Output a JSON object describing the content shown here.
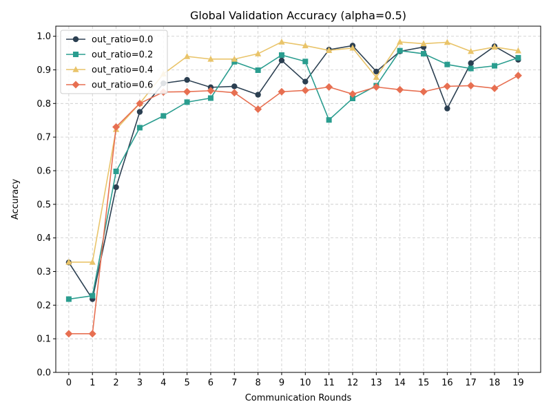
{
  "chart_data": {
    "type": "line",
    "title": "Global Validation Accuracy (alpha=0.5)",
    "xlabel": "Communication Rounds",
    "ylabel": "Accuracy",
    "x": [
      0,
      1,
      2,
      3,
      4,
      5,
      6,
      7,
      8,
      9,
      10,
      11,
      12,
      13,
      14,
      15,
      16,
      17,
      18,
      19
    ],
    "xlim": [
      -0.55,
      19.95
    ],
    "ylim": [
      0.0,
      1.03
    ],
    "yticks": [
      "0.0",
      "0.1",
      "0.2",
      "0.3",
      "0.4",
      "0.5",
      "0.6",
      "0.7",
      "0.8",
      "0.9",
      "1.0"
    ],
    "grid": true,
    "legend_position": "top-left",
    "series": [
      {
        "name": "out_ratio=0.0",
        "color": "#2b3f51",
        "marker": "circle",
        "values": [
          0.327,
          0.218,
          0.551,
          0.775,
          0.86,
          0.87,
          0.848,
          0.851,
          0.826,
          0.928,
          0.865,
          0.96,
          0.972,
          0.895,
          0.955,
          0.968,
          0.785,
          0.92,
          0.97,
          0.93
        ]
      },
      {
        "name": "out_ratio=0.2",
        "color": "#2a9d8f",
        "marker": "square",
        "values": [
          0.218,
          0.228,
          0.598,
          0.728,
          0.763,
          0.804,
          0.816,
          0.924,
          0.899,
          0.944,
          0.925,
          0.751,
          0.815,
          0.853,
          0.957,
          0.948,
          0.916,
          0.904,
          0.912,
          0.936
        ]
      },
      {
        "name": "out_ratio=0.4",
        "color": "#e9c46a",
        "marker": "triangle",
        "values": [
          0.328,
          0.328,
          0.723,
          0.8,
          0.888,
          0.94,
          0.932,
          0.932,
          0.948,
          0.983,
          0.972,
          0.958,
          0.965,
          0.878,
          0.983,
          0.978,
          0.982,
          0.955,
          0.968,
          0.957
        ]
      },
      {
        "name": "out_ratio=0.6",
        "color": "#e76f51",
        "marker": "diamond",
        "values": [
          0.115,
          0.115,
          0.73,
          0.8,
          0.834,
          0.835,
          0.838,
          0.832,
          0.783,
          0.835,
          0.839,
          0.849,
          0.828,
          0.849,
          0.841,
          0.835,
          0.851,
          0.853,
          0.845,
          0.883
        ]
      }
    ]
  }
}
